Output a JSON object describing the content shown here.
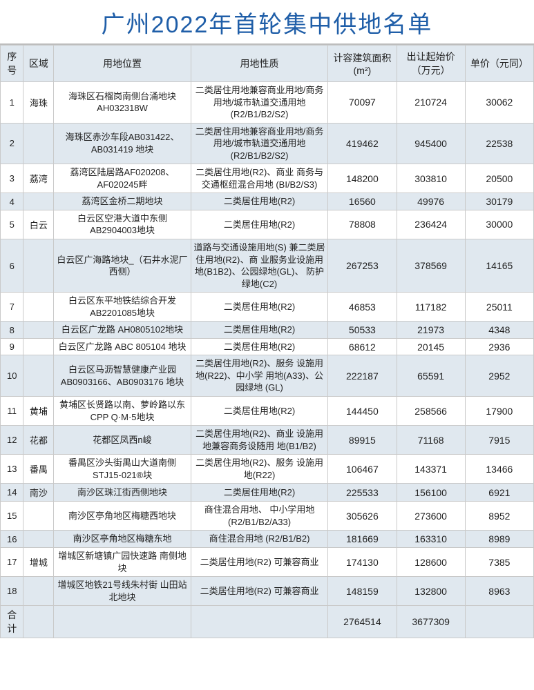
{
  "title": "广州2022年首轮集中供地名单",
  "headers": {
    "seq": "序号",
    "district": "区域",
    "location": "用地位置",
    "nature": "用地性质",
    "area_html": "计容建筑面积(m²)",
    "start_price": "出让起始价（万元）",
    "unit_price": "单价（元同）"
  },
  "rows": [
    {
      "seq": "1",
      "district": "海珠",
      "location": "海珠区石榴岗南侧台涌地块 AH032318W",
      "nature": "二类居住用地兼容商业用地/商务用地/城市轨道交通用地(R2/B1/B2/S2)",
      "area": "70097",
      "start_price": "210724",
      "unit_price": "30062",
      "alt": false
    },
    {
      "seq": "2",
      "district": "",
      "location": "海珠区赤沙车段AB031422、AB031419 地块",
      "nature": "二类居住用地兼容商业用地/商务用地/城市轨道交通用地(R2/B1/B2/S2)",
      "area": "419462",
      "start_price": "945400",
      "unit_price": "22538",
      "alt": true
    },
    {
      "seq": "3",
      "district": "荔湾",
      "location": "荔湾区陆居路AF020208、AF020245畔",
      "nature": "二类居住用地(R2)、商业 商务与交通枢纽混合用地 (BI/B2/S3)",
      "area": "148200",
      "start_price": "303810",
      "unit_price": "20500",
      "alt": false
    },
    {
      "seq": "4",
      "district": "",
      "location": "荔湾区金桥二期地块",
      "nature": "二类居住用地(R2)",
      "area": "16560",
      "start_price": "49976",
      "unit_price": "30179",
      "alt": true
    },
    {
      "seq": "5",
      "district": "白云",
      "location": "白云区空港大道中东侧 AB2904003地块",
      "nature": "二类居住用地(R2)",
      "area": "78808",
      "start_price": "236424",
      "unit_price": "30000",
      "alt": false
    },
    {
      "seq": "6",
      "district": "",
      "location": "白云区广海路地块_（石井水泥厂西侧）",
      "nature": "道路与交通设施用地(S) 兼二类居住用地(R2)、商 业服务业设施用地(B1B2)、公园绿地(GL)、 防护绿地(C2)",
      "area": "267253",
      "start_price": "378569",
      "unit_price": "14165",
      "alt": true
    },
    {
      "seq": "7",
      "district": "",
      "location": "白云区东平地铁结综合开发 AB2201085地块",
      "nature": "二类居住用地(R2)",
      "area": "46853",
      "start_price": "117182",
      "unit_price": "25011",
      "alt": false
    },
    {
      "seq": "8",
      "district": "",
      "location": "白云区广龙路 AH0805102地块",
      "nature": "二类居住用地(R2)",
      "area": "50533",
      "start_price": "21973",
      "unit_price": "4348",
      "alt": true
    },
    {
      "seq": "9",
      "district": "",
      "location": "白云区广龙路 ABC 805104 地块",
      "nature": "二类居住用地(R2)",
      "area": "68612",
      "start_price": "20145",
      "unit_price": "2936",
      "alt": false
    },
    {
      "seq": "10",
      "district": "",
      "location": "白云区马沥智慧健康产业园 AB0903166、AB0903176 地块",
      "nature": "二类居住用地(R2)、服务 设施用地(R22)、中小学 用地(A33)、公园绿地 (GL)",
      "area": "222187",
      "start_price": "65591",
      "unit_price": "2952",
      "alt": true
    },
    {
      "seq": "11",
      "district": "黄埔",
      "location": "黄埔区长贤路以南、萝岭路以东 CPP Q·M·5地块",
      "nature": "二类居住用地(R2)",
      "area": "144450",
      "start_price": "258566",
      "unit_price": "17900",
      "alt": false
    },
    {
      "seq": "12",
      "district": "花都",
      "location": "花都区凤西n峻",
      "nature": "二类居住用地(R2)、商业 设施用地兼容商务设随用 地(B1/B2)",
      "area": "89915",
      "start_price": "71168",
      "unit_price": "7915",
      "alt": true
    },
    {
      "seq": "13",
      "district": "番禺",
      "location": "番禺区沙头街禺山大道南侧 STJ15-021®块",
      "nature": "二类居住用地(R2)、服务 设施用地(R22)",
      "area": "106467",
      "start_price": "143371",
      "unit_price": "13466",
      "alt": false
    },
    {
      "seq": "14",
      "district": "南沙",
      "location": "南沙区珠江街西侧地块",
      "nature": "二类居住用地(R2)",
      "area": "225533",
      "start_price": "156100",
      "unit_price": "6921",
      "alt": true
    },
    {
      "seq": "15",
      "district": "",
      "location": "南沙区亭角地区梅糖西地块",
      "nature": "商住混合用地、 中小学用地 (R2/B1/B2/A33)",
      "area": "305626",
      "start_price": "273600",
      "unit_price": "8952",
      "alt": false
    },
    {
      "seq": "16",
      "district": "",
      "location": "南沙区亭角地区梅糖东地",
      "nature": "商住混合用地 (R2/B1/B2)",
      "area": "181669",
      "start_price": "163310",
      "unit_price": "8989",
      "alt": true
    },
    {
      "seq": "17",
      "district": "增城",
      "location": "增城区新塘镇广园快速路 南侧地块",
      "nature": "二类居住用地(R2) 可兼容商业",
      "area": "174130",
      "start_price": "128600",
      "unit_price": "7385",
      "alt": false
    },
    {
      "seq": "18",
      "district": "",
      "location": "增城区地铁21号线朱村街 山田站北地块",
      "nature": "二类居住用地(R2) 可兼容商业",
      "area": "148159",
      "start_price": "132800",
      "unit_price": "8963",
      "alt": true
    }
  ],
  "totals": {
    "label": "合计",
    "area": "2764514",
    "start_price": "3677309",
    "unit_price": ""
  },
  "colors": {
    "title_color": "#1f5ea8",
    "header_bg": "#e0e8ef",
    "border": "#c9c9c9",
    "bg": "#ffffff"
  }
}
